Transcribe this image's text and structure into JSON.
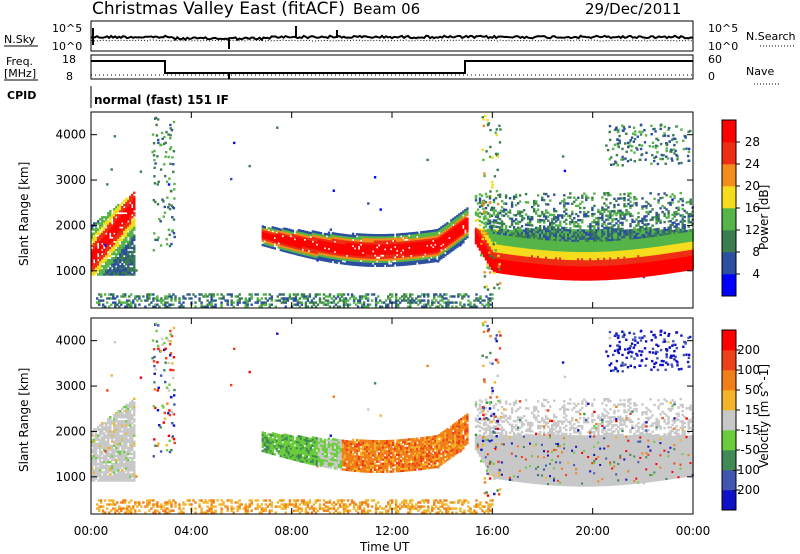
{
  "header": {
    "title": "Christmas Valley East (fitACF)",
    "beam": "Beam 06",
    "date": "29/Dec/2011"
  },
  "top_panels": {
    "nsky": {
      "left_label": "N.Sky",
      "right_label": "N.Search",
      "left_ticks": [
        "10^5",
        "10^0"
      ],
      "right_ticks": [
        "10^5",
        "10^0"
      ]
    },
    "freq": {
      "left_label_1": "Freq.",
      "left_label_2": "[MHz]",
      "right_label": "Nave",
      "left_ticks": [
        "18",
        "8"
      ],
      "right_ticks": [
        "60",
        "0"
      ]
    },
    "cpid": {
      "label": "CPID",
      "mode": "normal (fast) 151 IF"
    }
  },
  "chart_data": [
    {
      "type": "heatmap",
      "title": "Power",
      "ylabel": "Slant Range [km]",
      "xlabel": "Time UT",
      "ylim": [
        180,
        4500
      ],
      "yticks": [
        1000,
        2000,
        3000,
        4000
      ],
      "xticks": [
        "00:00",
        "04:00",
        "08:00",
        "12:00",
        "16:00",
        "20:00",
        "00:00"
      ],
      "colorbar": {
        "label": "Power [dB]",
        "ticks": [
          "4",
          "8",
          "12",
          "16",
          "20",
          "24",
          "28"
        ],
        "colors": [
          "#0000ff",
          "#2d4fa0",
          "#3a7d4e",
          "#55b548",
          "#f5dd1e",
          "#f28c1a",
          "#ee2e14",
          "#ff0000"
        ]
      }
    },
    {
      "type": "heatmap",
      "title": "Velocity",
      "ylabel": "Slant Range [km]",
      "xlabel": "Time UT",
      "ylim": [
        180,
        4500
      ],
      "yticks": [
        1000,
        2000,
        3000,
        4000
      ],
      "xticks": [
        "00:00",
        "04:00",
        "08:00",
        "12:00",
        "16:00",
        "20:00",
        "00:00"
      ],
      "colorbar": {
        "label": "Velocity [m s^-1]",
        "ticks": [
          "200",
          "100",
          "50",
          "15",
          "-15",
          "-50",
          "-100",
          "-200"
        ],
        "colors": [
          "#1010c8",
          "#3f55b0",
          "#3f8a55",
          "#6ccd3c",
          "#c8c8c8",
          "#f2b52a",
          "#f07f1a",
          "#ee4018",
          "#ff0000"
        ]
      }
    }
  ],
  "colors": {
    "ground_scatter": "#c8c8c8"
  }
}
